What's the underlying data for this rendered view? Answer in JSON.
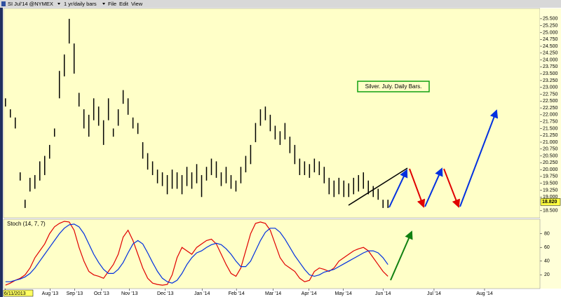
{
  "toolbar": {
    "symbol": "SI Jul'14 @NYMEX",
    "period": "1 yr/daily bars",
    "menus": [
      "File",
      "Edit",
      "View"
    ]
  },
  "chart_data": [
    {
      "type": "ohlc",
      "annotation": "Silver. July. Daily Bars.",
      "color": "#000000",
      "high": [
        22.6,
        22.2,
        21.9,
        19.9,
        18.9,
        19.7,
        19.8,
        20.3,
        20.5,
        20.9,
        21.5,
        23.6,
        24.2,
        25.5,
        24.6,
        22.8,
        22.2,
        22.0,
        22.6,
        22.3,
        21.8,
        22.6,
        21.5,
        22.2,
        22.9,
        22.6,
        21.9,
        21.7,
        21.0,
        20.6,
        20.3,
        20.0,
        19.9,
        19.8,
        20.0,
        19.9,
        19.8,
        20.1,
        19.9,
        20.2,
        19.8,
        20.1,
        20.4,
        20.3,
        19.9,
        20.1,
        19.8,
        19.6,
        20.1,
        20.5,
        20.9,
        21.7,
        22.2,
        22.3,
        22.0,
        21.6,
        21.4,
        21.7,
        21.2,
        20.9,
        20.4,
        20.3,
        20.2,
        20.4,
        20.3,
        20.1,
        19.7,
        19.6,
        19.7,
        19.6,
        19.5,
        19.7,
        19.8,
        19.9,
        19.6,
        19.4,
        19.3,
        18.9,
        18.9
      ],
      "low": [
        22.3,
        21.9,
        21.5,
        19.6,
        18.6,
        19.2,
        19.3,
        19.6,
        19.8,
        20.4,
        21.2,
        22.6,
        23.4,
        24.6,
        23.5,
        22.3,
        21.5,
        21.2,
        21.8,
        21.6,
        20.9,
        21.8,
        21.2,
        21.6,
        22.4,
        22.0,
        21.5,
        21.3,
        20.4,
        20.0,
        19.8,
        19.5,
        19.4,
        19.1,
        19.3,
        19.3,
        19.1,
        19.4,
        19.3,
        19.5,
        19.0,
        19.6,
        19.8,
        19.7,
        19.4,
        19.5,
        19.3,
        19.2,
        19.5,
        19.9,
        20.2,
        21.0,
        21.6,
        21.8,
        21.4,
        21.1,
        20.9,
        21.1,
        20.6,
        20.2,
        19.8,
        19.8,
        19.7,
        19.9,
        19.8,
        19.5,
        19.1,
        19.0,
        19.1,
        19.0,
        19.0,
        19.1,
        19.2,
        19.3,
        19.1,
        19.0,
        18.9,
        18.6,
        18.6
      ],
      "xlim": [
        -0.4,
        109
      ],
      "xticks": [
        {
          "value": 0,
          "label": "6/11/2013"
        },
        {
          "value": 9.1,
          "label": "Aug '13"
        },
        {
          "value": 14.1,
          "label": "Sep '13"
        },
        {
          "value": 19.6,
          "label": "Oct '13"
        },
        {
          "value": 25.3,
          "label": "Nov '13"
        },
        {
          "value": 32.6,
          "label": "Dec '13"
        },
        {
          "value": 40.1,
          "label": "Jan '14"
        },
        {
          "value": 47.1,
          "label": "Feb '14"
        },
        {
          "value": 54.6,
          "label": "Mar '14"
        },
        {
          "value": 61.9,
          "label": "Apr '14"
        },
        {
          "value": 68.9,
          "label": "May '14"
        },
        {
          "value": 77,
          "label": "Jun '14"
        },
        {
          "value": 87.4,
          "label": "Jul '14"
        },
        {
          "value": 97.7,
          "label": "Aug '14"
        }
      ],
      "ylim": [
        18.24,
        25.88
      ],
      "yticks": [
        {
          "value": 25.5,
          "label": "25.500"
        },
        {
          "value": 25.25,
          "label": "25.250"
        },
        {
          "value": 25,
          "label": "25.000"
        },
        {
          "value": 24.75,
          "label": "24.750"
        },
        {
          "value": 24.5,
          "label": "24.500"
        },
        {
          "value": 24.25,
          "label": "24.250"
        },
        {
          "value": 24,
          "label": "24.000"
        },
        {
          "value": 23.75,
          "label": "23.750"
        },
        {
          "value": 23.5,
          "label": "23.500"
        },
        {
          "value": 23.25,
          "label": "23.250"
        },
        {
          "value": 23,
          "label": "23.000"
        },
        {
          "value": 22.75,
          "label": "22.750"
        },
        {
          "value": 22.5,
          "label": "22.500"
        },
        {
          "value": 22.25,
          "label": "22.250"
        },
        {
          "value": 22,
          "label": "22.000"
        },
        {
          "value": 21.75,
          "label": "21.750"
        },
        {
          "value": 21.5,
          "label": "21.500"
        },
        {
          "value": 21.25,
          "label": "21.250"
        },
        {
          "value": 21,
          "label": "21.000"
        },
        {
          "value": 20.75,
          "label": "20.750"
        },
        {
          "value": 20.5,
          "label": "20.500"
        },
        {
          "value": 20.25,
          "label": "20.250"
        },
        {
          "value": 20,
          "label": "20.000"
        },
        {
          "value": 19.75,
          "label": "19.750"
        },
        {
          "value": 19.5,
          "label": "19.500"
        },
        {
          "value": 19.25,
          "label": "19.250"
        },
        {
          "value": 19,
          "label": "19.000"
        },
        {
          "value": 18.5,
          "label": "18.500"
        }
      ],
      "last_price": {
        "value": 18.82,
        "label": "18.820"
      }
    },
    {
      "type": "line",
      "title": "Stoch (14, 7, 7)",
      "series": [
        {
          "color": "#e00000",
          "values": [
            5,
            8,
            12,
            15,
            20,
            30,
            45,
            55,
            65,
            80,
            90,
            95,
            98,
            97,
            85,
            60,
            40,
            25,
            20,
            18,
            15,
            25,
            35,
            50,
            75,
            85,
            70,
            50,
            30,
            15,
            8,
            6,
            5,
            6,
            20,
            45,
            60,
            55,
            50,
            60,
            65,
            70,
            72,
            65,
            50,
            35,
            22,
            18,
            30,
            55,
            80,
            95,
            97,
            95,
            85,
            65,
            45,
            35,
            30,
            25,
            15,
            10,
            12,
            25,
            30,
            28,
            25,
            30,
            40,
            45,
            50,
            55,
            58,
            60,
            55,
            45,
            35,
            25,
            18
          ]
        },
        {
          "color": "#0030e0",
          "values": [
            10,
            10,
            12,
            14,
            17,
            22,
            30,
            40,
            50,
            60,
            70,
            80,
            88,
            93,
            94,
            90,
            80,
            65,
            50,
            38,
            28,
            22,
            22,
            28,
            38,
            52,
            65,
            70,
            65,
            52,
            38,
            25,
            15,
            10,
            8,
            12,
            22,
            35,
            45,
            52,
            55,
            60,
            64,
            66,
            64,
            58,
            50,
            40,
            32,
            32,
            40,
            55,
            70,
            82,
            88,
            88,
            82,
            72,
            60,
            48,
            38,
            28,
            20,
            18,
            20,
            24,
            26,
            28,
            32,
            36,
            40,
            44,
            48,
            52,
            55,
            55,
            52,
            45,
            35
          ]
        }
      ],
      "xlim": [
        -0.4,
        109
      ],
      "ylim": [
        0,
        100
      ],
      "yticks": [
        20,
        40,
        60,
        80
      ]
    }
  ]
}
